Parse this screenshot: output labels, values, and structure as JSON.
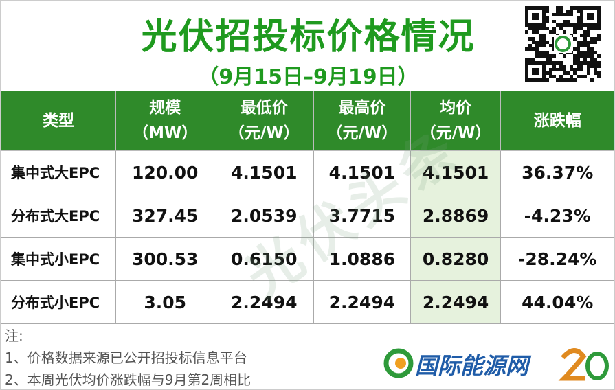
{
  "header": {
    "title": "光伏招投标价格情况",
    "subtitle": "（9月15日–9月19日）"
  },
  "table": {
    "columns": [
      [
        "类型"
      ],
      [
        "规模",
        "（MW）"
      ],
      [
        "最低价",
        "（元/W）"
      ],
      [
        "最高价",
        "（元/W）"
      ],
      [
        "均价",
        "（元/W）"
      ],
      [
        "涨跌幅"
      ]
    ],
    "rows": [
      [
        "集中式大EPC",
        "120.00",
        "4.1501",
        "4.1501",
        "4.1501",
        "36.37%"
      ],
      [
        "分布式大EPC",
        "327.45",
        "2.0539",
        "3.7715",
        "2.8869",
        "-4.23%"
      ],
      [
        "集中式小EPC",
        "300.53",
        "0.6150",
        "1.0886",
        "0.8280",
        "-28.24%"
      ],
      [
        "分布式小EPC",
        "3.05",
        "2.2494",
        "2.2494",
        "2.2494",
        "44.04%"
      ]
    ]
  },
  "notes": {
    "label": "注:",
    "items": [
      "1、价格数据来源已公开招投标信息平台",
      "2、本周光伏均价涨跌幅与9月第2周相比"
    ]
  },
  "watermark": "光伏头条",
  "logo": "国际能源网"
}
